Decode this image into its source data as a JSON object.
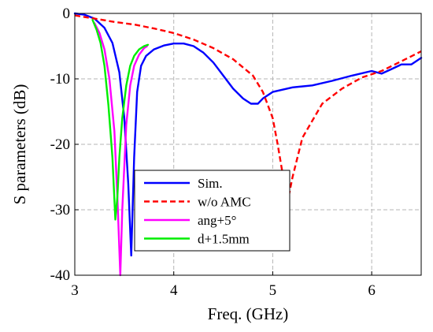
{
  "chart_data": {
    "type": "line",
    "title": "",
    "xlabel": "Freq. (GHz)",
    "ylabel": "S parameters (dB)",
    "xlim": [
      3,
      6.5
    ],
    "ylim": [
      -40,
      0
    ],
    "xticks": [
      3,
      4,
      5,
      6
    ],
    "yticks": [
      0,
      -10,
      -20,
      -30,
      -40
    ],
    "grid": true,
    "legend_position": "lower-center",
    "series": [
      {
        "name": "Sim.",
        "color": "#0000ff",
        "dash": "solid",
        "x": [
          3.0,
          3.1,
          3.2,
          3.3,
          3.38,
          3.45,
          3.5,
          3.54,
          3.57,
          3.6,
          3.63,
          3.67,
          3.72,
          3.8,
          3.9,
          4.0,
          4.1,
          4.2,
          4.3,
          4.4,
          4.5,
          4.6,
          4.7,
          4.78,
          4.85,
          4.9,
          5.0,
          5.2,
          5.4,
          5.6,
          5.8,
          6.0,
          6.1,
          6.2,
          6.3,
          6.4,
          6.5
        ],
        "y": [
          0,
          -0.2,
          -0.8,
          -2.2,
          -4.5,
          -9,
          -16,
          -26,
          -37,
          -22,
          -12,
          -8,
          -6.5,
          -5.5,
          -4.9,
          -4.6,
          -4.6,
          -5.0,
          -6.0,
          -7.5,
          -9.5,
          -11.5,
          -13.0,
          -13.8,
          -13.8,
          -13.0,
          -12.0,
          -11.3,
          -11.0,
          -10.3,
          -9.5,
          -8.8,
          -9.2,
          -8.5,
          -7.8,
          -7.8,
          -6.8
        ]
      },
      {
        "name": "w/o AMC",
        "color": "#ff0000",
        "dash": "dashed",
        "x": [
          3.0,
          3.2,
          3.4,
          3.6,
          3.8,
          4.0,
          4.2,
          4.4,
          4.6,
          4.8,
          4.9,
          5.0,
          5.05,
          5.1,
          5.15,
          5.2,
          5.3,
          5.5,
          5.7,
          5.9,
          6.1,
          6.3,
          6.5
        ],
        "y": [
          -0.3,
          -0.8,
          -1.3,
          -1.7,
          -2.3,
          -3.0,
          -4.0,
          -5.3,
          -7.0,
          -9.5,
          -12.0,
          -16.0,
          -20.0,
          -24.5,
          -28.8,
          -25.0,
          -19.0,
          -13.8,
          -11.5,
          -9.8,
          -8.8,
          -7.3,
          -5.8
        ]
      },
      {
        "name": "ang+5°",
        "color": "#ff00ff",
        "dash": "solid",
        "x": [
          3.2,
          3.25,
          3.3,
          3.35,
          3.4,
          3.43,
          3.46,
          3.48,
          3.52,
          3.56,
          3.6,
          3.65,
          3.7,
          3.73
        ],
        "y": [
          -1.5,
          -3.0,
          -5.5,
          -10.0,
          -18.0,
          -28.0,
          -40.0,
          -30.0,
          -17.0,
          -11.0,
          -8.0,
          -6.3,
          -5.3,
          -5.0
        ]
      },
      {
        "name": "d+1.5mm",
        "color": "#00ee00",
        "dash": "solid",
        "x": [
          3.18,
          3.22,
          3.26,
          3.3,
          3.34,
          3.38,
          3.41,
          3.43,
          3.45,
          3.48,
          3.52,
          3.56,
          3.6,
          3.65,
          3.7,
          3.74
        ],
        "y": [
          -1.0,
          -2.5,
          -4.5,
          -8.0,
          -14.0,
          -22.0,
          -31.5,
          -28.0,
          -22.0,
          -16.0,
          -11.0,
          -8.0,
          -6.5,
          -5.5,
          -5.0,
          -4.8
        ]
      }
    ]
  }
}
